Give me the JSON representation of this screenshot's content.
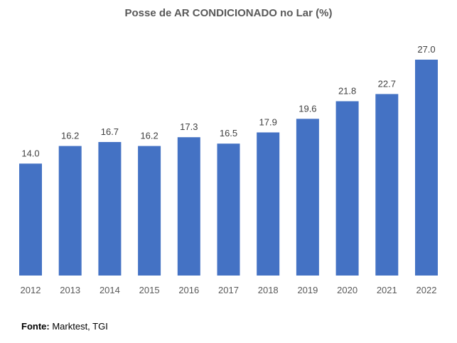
{
  "chart_data": {
    "type": "bar",
    "title": "Posse de AR CONDICIONADO no Lar (%)",
    "categories": [
      "2012",
      "2013",
      "2014",
      "2015",
      "2016",
      "2017",
      "2018",
      "2019",
      "2020",
      "2021",
      "2022"
    ],
    "values": [
      14.0,
      16.2,
      16.7,
      16.2,
      17.3,
      16.5,
      17.9,
      19.6,
      21.8,
      22.7,
      27.0
    ],
    "xlabel": "",
    "ylabel": "",
    "ylim": [
      0,
      27
    ],
    "grid": false,
    "legend": "none",
    "bar_color": "#4472C4"
  },
  "source": {
    "label": "Fonte:",
    "text": "Marktest, TGI"
  }
}
